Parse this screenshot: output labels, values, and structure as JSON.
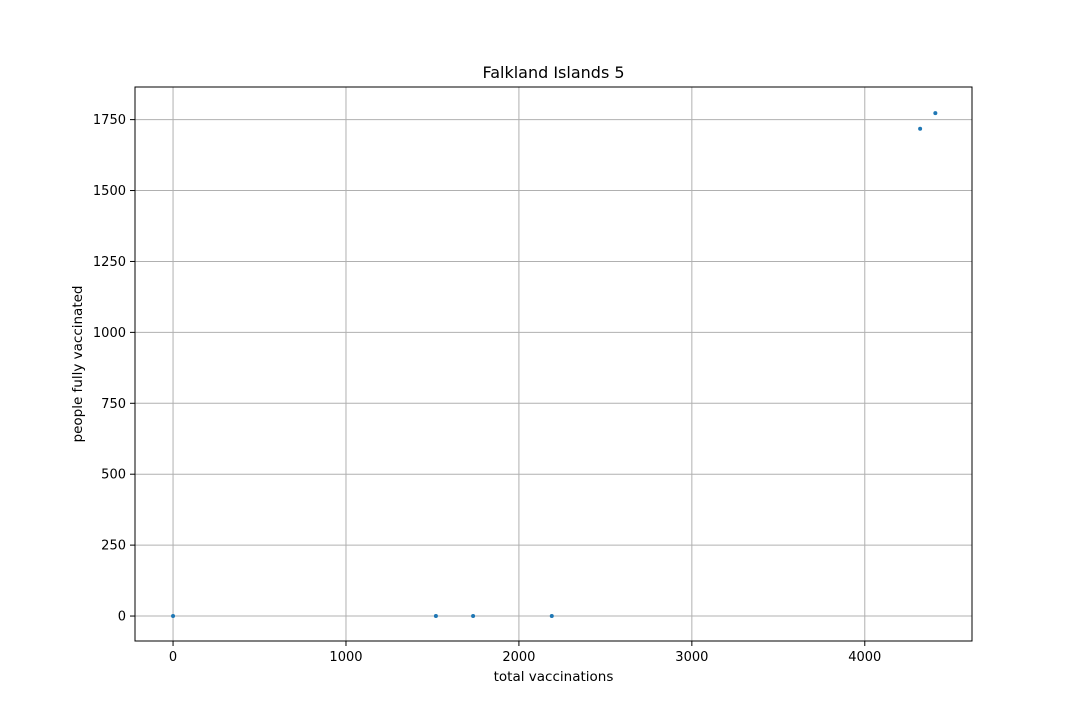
{
  "chart_data": {
    "type": "scatter",
    "title": "Falkland Islands 5",
    "xlabel": "total vaccinations",
    "ylabel": "people fully vaccinated",
    "xlim": [
      -220,
      4620
    ],
    "ylim": [
      -88,
      1865
    ],
    "xticks": [
      0,
      1000,
      2000,
      3000,
      4000
    ],
    "yticks": [
      0,
      250,
      500,
      750,
      1000,
      1250,
      1500,
      1750
    ],
    "grid": true,
    "marker_color": "#1f77b4",
    "points": [
      {
        "x": 0,
        "y": 0
      },
      {
        "x": 1520,
        "y": 0
      },
      {
        "x": 1735,
        "y": 0
      },
      {
        "x": 2190,
        "y": 0
      },
      {
        "x": 4320,
        "y": 1718
      },
      {
        "x": 4408,
        "y": 1773
      }
    ]
  }
}
